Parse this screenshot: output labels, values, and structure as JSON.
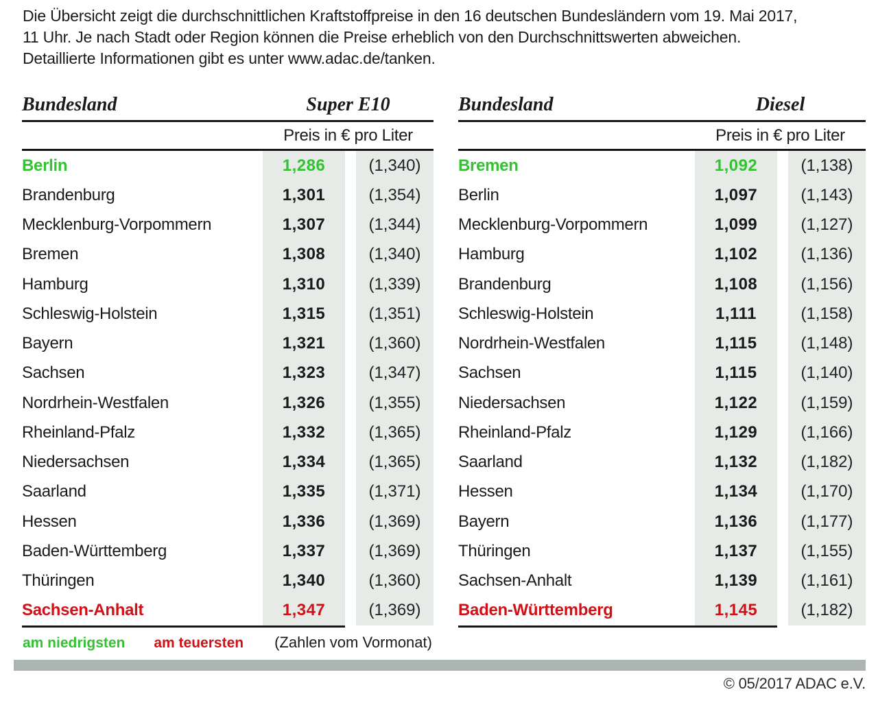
{
  "intro": {
    "line1": "Die Übersicht zeigt die durchschnittlichen Kraftstoffpreise in den 16 deutschen Bundesländern vom 19. Mai 2017,",
    "line2": "11 Uhr. Je nach Stadt oder Region können die Preise erheblich von den Durchschnittswerten abweichen.",
    "line3": "Detaillierte Informationen gibt es unter www.adac.de/tanken."
  },
  "colors": {
    "green": "#34c233",
    "red": "#d01117",
    "cell-bg": "#e6ebe7",
    "bar": "#abb5b2",
    "text": "#1a1a1a"
  },
  "legend": {
    "lowest": "am niedrigsten",
    "highest": "am teuersten",
    "note": "(Zahlen vom Vormonat)"
  },
  "footer": {
    "copyright": "© 05/2017 ADAC e.V."
  },
  "chart_data": [
    {
      "type": "table",
      "region_col": "Bundesland",
      "fuel_col": "Super E10",
      "unit_label": "Preis in € pro Liter",
      "note": "values in € per liter, previous month in parentheses",
      "rows": [
        {
          "name": "Berlin",
          "price": "1,286",
          "prev": "(1,340)",
          "status": "lowest"
        },
        {
          "name": "Brandenburg",
          "price": "1,301",
          "prev": "(1,354)"
        },
        {
          "name": "Mecklenburg-Vorpommern",
          "price": "1,307",
          "prev": "(1,344)"
        },
        {
          "name": "Bremen",
          "price": "1,308",
          "prev": "(1,340)"
        },
        {
          "name": "Hamburg",
          "price": "1,310",
          "prev": "(1,339)"
        },
        {
          "name": "Schleswig-Holstein",
          "price": "1,315",
          "prev": "(1,351)"
        },
        {
          "name": "Bayern",
          "price": "1,321",
          "prev": "(1,360)"
        },
        {
          "name": "Sachsen",
          "price": "1,323",
          "prev": "(1,347)"
        },
        {
          "name": "Nordrhein-Westfalen",
          "price": "1,326",
          "prev": "(1,355)"
        },
        {
          "name": "Rheinland-Pfalz",
          "price": "1,332",
          "prev": "(1,365)"
        },
        {
          "name": "Niedersachsen",
          "price": "1,334",
          "prev": "(1,365)"
        },
        {
          "name": "Saarland",
          "price": "1,335",
          "prev": "(1,371)"
        },
        {
          "name": "Hessen",
          "price": "1,336",
          "prev": "(1,369)"
        },
        {
          "name": "Baden-Württemberg",
          "price": "1,337",
          "prev": "(1,369)"
        },
        {
          "name": "Thüringen",
          "price": "1,340",
          "prev": "(1,360)"
        },
        {
          "name": "Sachsen-Anhalt",
          "price": "1,347",
          "prev": "(1,369)",
          "status": "highest"
        }
      ]
    },
    {
      "type": "table",
      "region_col": "Bundesland",
      "fuel_col": "Diesel",
      "unit_label": "Preis in € pro Liter",
      "note": "values in € per liter, previous month in parentheses",
      "rows": [
        {
          "name": "Bremen",
          "price": "1,092",
          "prev": "(1,138)",
          "status": "lowest"
        },
        {
          "name": "Berlin",
          "price": "1,097",
          "prev": "(1,143)"
        },
        {
          "name": "Mecklenburg-Vorpommern",
          "price": "1,099",
          "prev": "(1,127)"
        },
        {
          "name": "Hamburg",
          "price": "1,102",
          "prev": "(1,136)"
        },
        {
          "name": "Brandenburg",
          "price": "1,108",
          "prev": "(1,156)"
        },
        {
          "name": "Schleswig-Holstein",
          "price": "1,111",
          "prev": "(1,158)"
        },
        {
          "name": "Nordrhein-Westfalen",
          "price": "1,115",
          "prev": "(1,148)"
        },
        {
          "name": "Sachsen",
          "price": "1,115",
          "prev": "(1,140)"
        },
        {
          "name": "Niedersachsen",
          "price": "1,122",
          "prev": "(1,159)"
        },
        {
          "name": "Rheinland-Pfalz",
          "price": "1,129",
          "prev": "(1,166)"
        },
        {
          "name": "Saarland",
          "price": "1,132",
          "prev": "(1,182)"
        },
        {
          "name": "Hessen",
          "price": "1,134",
          "prev": "(1,170)"
        },
        {
          "name": "Bayern",
          "price": "1,136",
          "prev": "(1,177)"
        },
        {
          "name": "Thüringen",
          "price": "1,137",
          "prev": "(1,155)"
        },
        {
          "name": "Sachsen-Anhalt",
          "price": "1,139",
          "prev": "(1,161)"
        },
        {
          "name": "Baden-Württemberg",
          "price": "1,145",
          "prev": "(1,182)",
          "status": "highest"
        }
      ]
    }
  ]
}
